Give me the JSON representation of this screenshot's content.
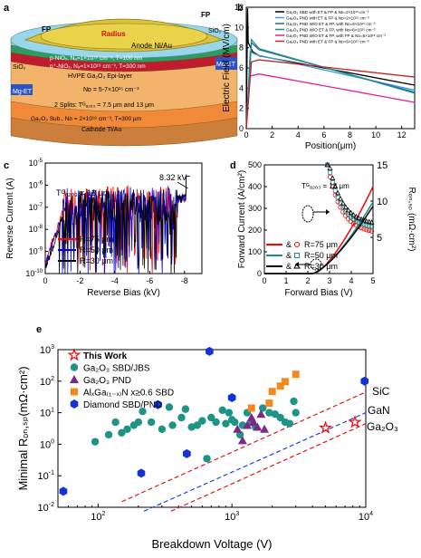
{
  "panels": {
    "a": {
      "letter": "a",
      "labels": {
        "fp_left": "FP",
        "fp_right": "FP",
        "radius": "Radius",
        "anode": "Anode Ni/Au",
        "sio2_left": "SiO₂",
        "sio2_right": "SiO₂",
        "pnio": "p-NiOₓ, Nₐ=1×10¹⁸ cm⁻³, T=100 nm",
        "pnio_plus": "p⁺-NiOₓ, Nₐ=1×10¹⁹ cm⁻³, T=300 nm",
        "hvpe": "HVPE Ga₂O₃ Epi-layer",
        "nd": "Nᴅ = 5-7×10¹⁵ cm⁻³",
        "splits": "2 Splits: Tᴳₐ₂ₒ₃ = 7.5 μm and 13 μm",
        "sub": "Ga₂O₃ Sub., Nᴅ = 2×10¹⁸ cm⁻³, T=300 μm",
        "cathode": "Cathode Ti/Au",
        "mget_left": "Mg-ET",
        "mget_right": "Mg-ET"
      }
    },
    "b": {
      "letter": "b",
      "legend": [
        "Ga₂O₃ SBD with ET & FP & Nᴅ=2×10¹⁵ cm⁻³",
        "Ga₂O₃ PND with ET & FP & Nᴅ=2×10¹⁵ cm⁻³",
        "Ga₂O₃ PND W/O ET & FP, with Nᴅ=6×10¹⁵ cm⁻³",
        "Ga₂O₃ PND W/O ET & FP, with Nᴅ=6×10¹⁵ cm⁻³",
        "Ga₂O₃ PND W/O ET & FP, with FP & Nᴅ=6×10¹⁵ cm⁻³",
        "Ga₂O₃ PND with ET & FP & Nᴅ=6×10¹⁵ cm⁻³"
      ]
    },
    "c": {
      "letter": "c",
      "annotation_v": "8.32 kV",
      "annotation_t": "Tᴳₐ₂ₒ₃ = 13 μm",
      "legend": [
        "R=75 μm",
        "R=50 μm",
        "R=30 μm"
      ]
    },
    "d": {
      "letter": "d",
      "annotation_t": "Tᴳₐ₂ₒ₃ = 13 μm",
      "legend": [
        "R=75 μm",
        "R=50 μm",
        "R=30 μm"
      ],
      "amp": "&"
    },
    "e": {
      "letter": "e",
      "legend": [
        "This Work",
        "Ga₂O₃ SBD/JBS",
        "Ga₂O₃ PND",
        "AlₓGa₍₁₋ₓ₎N x≥0.6 SBD",
        "Diamond SBD/PND"
      ],
      "line_labels": [
        "SiC",
        "GaN",
        "Ga₂O₃"
      ]
    }
  },
  "chart_data": [
    {
      "panel": "b",
      "type": "line",
      "xlabel": "Position(μm)",
      "ylabel": "Electric Field (MV/cm)",
      "xlim": [
        0,
        13
      ],
      "ylim": [
        0,
        12
      ],
      "xticks": [
        0,
        2,
        4,
        6,
        8,
        10,
        12
      ],
      "yticks": [
        0,
        2,
        4,
        6,
        8,
        10,
        12
      ],
      "series": [
        {
          "color": "#000000",
          "x": [
            0,
            0.1,
            0.15,
            0.5,
            1,
            13
          ],
          "y": [
            0,
            11.9,
            8.5,
            7.6,
            7.2,
            4.3
          ]
        },
        {
          "color": "#3aa3d8",
          "x": [
            0,
            0.3,
            0.8,
            13
          ],
          "y": [
            0,
            7.6,
            7.3,
            3.8
          ]
        },
        {
          "color": "#2f5fa8",
          "x": [
            0,
            0.4,
            1,
            13
          ],
          "y": [
            0,
            8.5,
            7.8,
            3.6
          ]
        },
        {
          "color": "#1a8f8a",
          "x": [
            0,
            0.4,
            1,
            13
          ],
          "y": [
            0,
            8.8,
            7.9,
            3.5
          ]
        },
        {
          "color": "#e0209e",
          "x": [
            0,
            0.3,
            1,
            13
          ],
          "y": [
            0,
            5.2,
            5.4,
            2.6
          ]
        },
        {
          "color": "#c2281f",
          "x": [
            0,
            0.4,
            1,
            13
          ],
          "y": [
            0,
            6.6,
            6.8,
            5.1
          ]
        }
      ]
    },
    {
      "panel": "c",
      "type": "line",
      "xlabel": "Reverse Bias (kV)",
      "ylabel": "Reverse Current (A)",
      "xlim": [
        0,
        -9
      ],
      "ylim_log": [
        -10,
        -5
      ],
      "xticks": [
        0,
        -2,
        -4,
        -6,
        -8
      ],
      "series": [
        {
          "name": "R=75 μm",
          "color": "#ff0000"
        },
        {
          "name": "R=50 μm",
          "color": "#0000ee"
        },
        {
          "name": "R=30 μm",
          "color": "#000000"
        }
      ],
      "breakdown_kV": 8.32
    },
    {
      "panel": "d",
      "type": "line",
      "xlabel": "Forward Bias (V)",
      "ylabel": "Forward Current (A/cm²)",
      "y2label": "Rₒₙ,ₛₚ (mΩ·cm²)",
      "xlim": [
        0,
        5
      ],
      "ylim": [
        0,
        500
      ],
      "y2lim": [
        0,
        15
      ],
      "xticks": [
        0,
        1,
        2,
        3,
        4,
        5
      ],
      "yticks": [
        0,
        100,
        200,
        300,
        400,
        500
      ],
      "y2ticks": [
        5,
        10,
        15
      ],
      "series": [
        {
          "name": "R=75 μm",
          "color": "#ff0000",
          "threshold": 2.3,
          "i5": 400
        },
        {
          "name": "R=50 μm",
          "color": "#1a8f8a",
          "threshold": 2.25,
          "i5": 330
        },
        {
          "name": "R=30 μm",
          "color": "#000000",
          "threshold": 2.2,
          "i5": 310
        }
      ]
    },
    {
      "panel": "e",
      "type": "scatter",
      "xlabel": "Breakdown Voltage (V)",
      "ylabel": "Minimal Rₒₙ,ₛₚ(mΩ·cm²)",
      "xlim_log": [
        1.7,
        4
      ],
      "ylim_log": [
        -2,
        3
      ],
      "xticks_log": [
        2,
        3,
        4
      ],
      "yticks_log": [
        -2,
        -1,
        0,
        1,
        2,
        3
      ],
      "series": [
        {
          "name": "This Work",
          "marker": "star",
          "color": "#e3161a",
          "points": [
            [
              5000,
              3.3
            ],
            [
              8300,
              5
            ]
          ]
        },
        {
          "name": "Ga₂O₃ SBD/JBS",
          "marker": "circle",
          "color": "#1e9486",
          "points": [
            [
              95,
              1.2
            ],
            [
              120,
              2
            ],
            [
              135,
              5
            ],
            [
              150,
              2.3
            ],
            [
              165,
              3
            ],
            [
              185,
              4
            ],
            [
              200,
              5
            ],
            [
              215,
              11
            ],
            [
              250,
              5
            ],
            [
              300,
              3
            ],
            [
              340,
              15
            ],
            [
              360,
              4
            ],
            [
              420,
              7
            ],
            [
              450,
              13
            ],
            [
              500,
              3.5
            ],
            [
              550,
              4
            ],
            [
              600,
              5.5
            ],
            [
              650,
              0.35
            ],
            [
              700,
              7
            ],
            [
              760,
              5
            ],
            [
              850,
              12
            ],
            [
              900,
              4.5
            ],
            [
              950,
              10
            ],
            [
              1000,
              6
            ],
            [
              1050,
              5
            ],
            [
              1150,
              2
            ],
            [
              1200,
              4
            ],
            [
              1300,
              10
            ],
            [
              1400,
              5
            ],
            [
              1500,
              3.5
            ],
            [
              1700,
              14
            ],
            [
              1900,
              10
            ],
            [
              2100,
              9
            ],
            [
              2300,
              7
            ],
            [
              2500,
              5
            ],
            [
              2700,
              4.5
            ],
            [
              2900,
              23
            ],
            [
              3000,
              10
            ]
          ]
        },
        {
          "name": "Ga₂O₃ PND",
          "marker": "triangle",
          "color": "#7b2a8a",
          "points": [
            [
              1100,
              3
            ],
            [
              1200,
              1.3
            ],
            [
              1300,
              4
            ],
            [
              1400,
              7
            ],
            [
              1450,
              5
            ],
            [
              1550,
              3.5
            ],
            [
              1650,
              9
            ],
            [
              1750,
              3
            ]
          ]
        },
        {
          "name": "AlGaN SBD",
          "marker": "square",
          "color": "#f5891f",
          "points": [
            [
              1400,
              14
            ],
            [
              1900,
              20
            ],
            [
              2000,
              47
            ],
            [
              2300,
              70
            ],
            [
              2500,
              97
            ],
            [
              3000,
              165
            ]
          ]
        },
        {
          "name": "Diamond SBD/PND",
          "marker": "hexagon",
          "color": "#1432d8",
          "points": [
            [
              55,
              0.032
            ],
            [
              210,
              0.12
            ],
            [
              280,
              18
            ],
            [
              460,
              0.5
            ],
            [
              680,
              880
            ],
            [
              1000,
              30
            ],
            [
              9800,
              100
            ]
          ]
        }
      ],
      "limit_lines": [
        {
          "name": "SiC",
          "color": "#e3161a",
          "x": [
            150,
            10000
          ],
          "y": [
            0.015,
            45
          ]
        },
        {
          "name": "GaN",
          "color": "#1a44e0",
          "x": [
            220,
            10000
          ],
          "y": [
            0.0075,
            10
          ]
        },
        {
          "name": "Ga₂O₃",
          "color": "#e3161a",
          "x": [
            350,
            10000
          ],
          "y": [
            0.0075,
            4.5
          ]
        }
      ]
    }
  ]
}
